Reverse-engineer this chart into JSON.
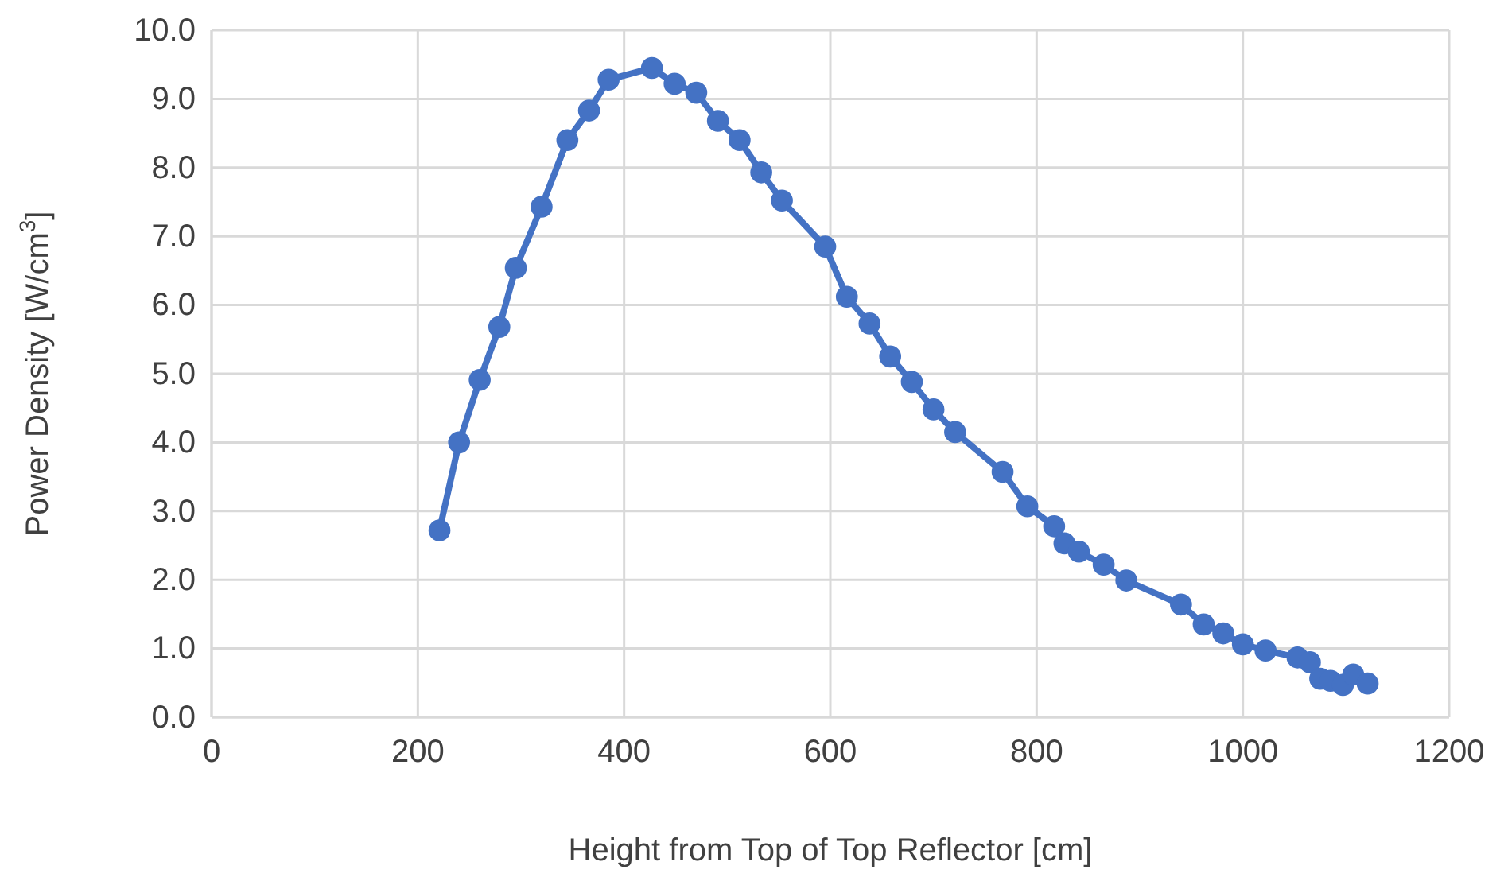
{
  "chart_data": {
    "type": "line",
    "xlabel": "Height from Top of Top Reflector [cm]",
    "ylabel": "Power Density [W/cm$^{3}$]",
    "xlim": [
      0,
      1200
    ],
    "xticks": [
      0,
      200,
      400,
      600,
      800,
      1000,
      1200
    ],
    "ylim": [
      0,
      10
    ],
    "yticks": [
      {
        "value": 0,
        "label": "0.0"
      },
      {
        "value": 1,
        "label": "1.0"
      },
      {
        "value": 2,
        "label": "2.0"
      },
      {
        "value": 3,
        "label": "3.0"
      },
      {
        "value": 4,
        "label": "4.0"
      },
      {
        "value": 5,
        "label": "5.0"
      },
      {
        "value": 6,
        "label": "6.0"
      },
      {
        "value": 7,
        "label": "7.0"
      },
      {
        "value": 8,
        "label": "8.0"
      },
      {
        "value": 9,
        "label": "9.0"
      },
      {
        "value": 10,
        "label": "10.0"
      }
    ],
    "grid": true,
    "marker": "circle",
    "line_style": "solid",
    "series": [
      {
        "color": "#4472c4",
        "x": [
          221,
          240,
          260,
          279,
          295,
          320,
          345,
          366,
          385,
          427,
          449,
          470,
          491,
          512,
          533,
          553,
          595,
          616,
          638,
          658,
          679,
          700,
          721,
          767,
          791,
          817,
          827,
          841,
          865,
          887,
          940,
          962,
          981,
          1000,
          1022,
          1053,
          1065,
          1071,
          1075,
          1085,
          1097,
          1107,
          1121
        ],
        "values": [
          2.72,
          4.0,
          4.91,
          5.68,
          6.54,
          7.43,
          8.4,
          8.83,
          9.28,
          9.45,
          9.22,
          9.09,
          8.68,
          8.4,
          7.93,
          7.52,
          6.85,
          6.12,
          5.73,
          5.25,
          4.88,
          4.48,
          4.15,
          3.57,
          3.07,
          2.78,
          2.53,
          2.41,
          2.22,
          1.99,
          1.64,
          1.35,
          1.22,
          1.06,
          0.97,
          0.87,
          0.8,
          null,
          0.56,
          0.53,
          0.47,
          0.62,
          0.49
        ]
      }
    ]
  }
}
